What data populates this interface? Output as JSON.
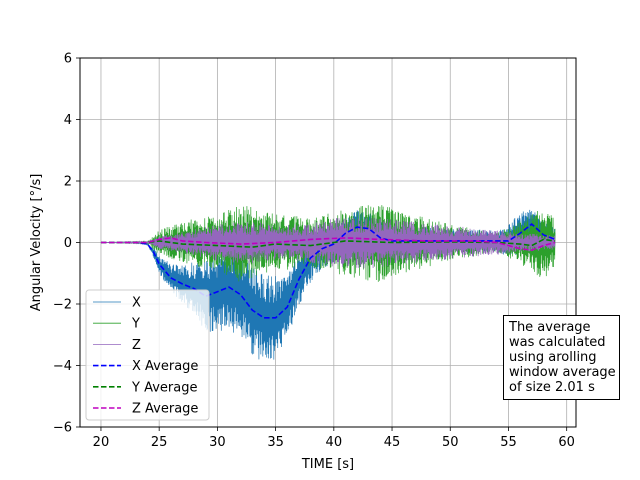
{
  "chart_data": {
    "type": "line",
    "title": "",
    "xlabel": "TIME [s]",
    "ylabel": "Angular Velocity [°/s]",
    "xlim": [
      18.2,
      60.8
    ],
    "ylim": [
      -6,
      6
    ],
    "x_ticks": [
      20,
      25,
      30,
      35,
      40,
      45,
      50,
      55,
      60
    ],
    "y_ticks": [
      -6,
      -4,
      -2,
      0,
      2,
      4,
      6
    ],
    "x_tick_labels": [
      "20",
      "25",
      "30",
      "35",
      "40",
      "45",
      "50",
      "55",
      "60"
    ],
    "y_tick_labels": [
      "−6",
      "−4",
      "−2",
      "0",
      "2",
      "4",
      "6"
    ],
    "grid": true,
    "legend_position": "lower-left",
    "x_range": [
      20,
      59
    ],
    "series": [
      {
        "name": "X",
        "style": "solid",
        "color": "#1f77b4",
        "mean": [
          [
            20,
            0
          ],
          [
            23,
            0
          ],
          [
            24,
            -0.05
          ],
          [
            24.5,
            -0.3
          ],
          [
            25,
            -0.7
          ],
          [
            26,
            -1.15
          ],
          [
            27,
            -1.35
          ],
          [
            28,
            -1.5
          ],
          [
            29,
            -1.75
          ],
          [
            30,
            -1.6
          ],
          [
            31,
            -1.45
          ],
          [
            32,
            -1.7
          ],
          [
            33,
            -2.2
          ],
          [
            34,
            -2.45
          ],
          [
            35,
            -2.45
          ],
          [
            36,
            -2.1
          ],
          [
            37,
            -1.2
          ],
          [
            38,
            -0.5
          ],
          [
            39,
            -0.2
          ],
          [
            40,
            -0.05
          ],
          [
            41,
            0.3
          ],
          [
            42,
            0.5
          ],
          [
            43,
            0.45
          ],
          [
            44,
            0.15
          ],
          [
            45,
            0.05
          ],
          [
            50,
            0.05
          ],
          [
            54,
            0.05
          ],
          [
            55,
            0.05
          ],
          [
            56,
            0.3
          ],
          [
            57,
            0.6
          ],
          [
            58,
            0.25
          ],
          [
            59,
            0.1
          ]
        ],
        "amp": [
          [
            20,
            0
          ],
          [
            24,
            0.02
          ],
          [
            25,
            0.3
          ],
          [
            27,
            0.6
          ],
          [
            29,
            1.2
          ],
          [
            31,
            1.4
          ],
          [
            33,
            1.5
          ],
          [
            35,
            1.4
          ],
          [
            36,
            1.0
          ],
          [
            38,
            0.8
          ],
          [
            40,
            0.6
          ],
          [
            45,
            0.5
          ],
          [
            50,
            0.4
          ],
          [
            54,
            0.35
          ],
          [
            56,
            0.7
          ],
          [
            57,
            0.5
          ],
          [
            59,
            0.4
          ]
        ]
      },
      {
        "name": "Y",
        "style": "solid",
        "color": "#2ca02c",
        "mean": [
          [
            20,
            0
          ],
          [
            59,
            0
          ]
        ],
        "amp": [
          [
            20,
            0
          ],
          [
            24,
            0.03
          ],
          [
            25,
            0.4
          ],
          [
            27,
            0.7
          ],
          [
            30,
            0.9
          ],
          [
            32,
            1.3
          ],
          [
            34,
            1.0
          ],
          [
            36,
            0.9
          ],
          [
            38,
            0.8
          ],
          [
            40,
            1.0
          ],
          [
            42,
            1.2
          ],
          [
            44,
            1.3
          ],
          [
            46,
            1.0
          ],
          [
            48,
            0.8
          ],
          [
            50,
            0.6
          ],
          [
            54,
            0.3
          ],
          [
            56,
            0.7
          ],
          [
            58,
            1.2
          ],
          [
            59,
            0.8
          ]
        ]
      },
      {
        "name": "Z",
        "style": "solid",
        "color": "#9467bd",
        "mean": [
          [
            20,
            0
          ],
          [
            59,
            0
          ]
        ],
        "amp": [
          [
            20,
            0
          ],
          [
            24,
            0.03
          ],
          [
            25,
            0.2
          ],
          [
            27,
            0.35
          ],
          [
            30,
            0.6
          ],
          [
            33,
            0.7
          ],
          [
            35,
            0.55
          ],
          [
            37,
            0.6
          ],
          [
            40,
            0.8
          ],
          [
            43,
            0.85
          ],
          [
            46,
            0.7
          ],
          [
            50,
            0.55
          ],
          [
            54,
            0.4
          ],
          [
            56,
            0.3
          ],
          [
            59,
            0.25
          ]
        ]
      },
      {
        "name": "X Average",
        "style": "dashed",
        "color": "#0000ff",
        "points": [
          [
            20,
            0
          ],
          [
            23,
            0
          ],
          [
            24,
            -0.05
          ],
          [
            24.5,
            -0.3
          ],
          [
            25,
            -0.7
          ],
          [
            26,
            -1.15
          ],
          [
            27,
            -1.35
          ],
          [
            28,
            -1.5
          ],
          [
            29,
            -1.75
          ],
          [
            30,
            -1.6
          ],
          [
            31,
            -1.45
          ],
          [
            32,
            -1.7
          ],
          [
            33,
            -2.2
          ],
          [
            34,
            -2.45
          ],
          [
            35,
            -2.45
          ],
          [
            36,
            -2.1
          ],
          [
            37,
            -1.2
          ],
          [
            38,
            -0.5
          ],
          [
            39,
            -0.2
          ],
          [
            40,
            -0.05
          ],
          [
            41,
            0.3
          ],
          [
            42,
            0.5
          ],
          [
            43,
            0.45
          ],
          [
            44,
            0.15
          ],
          [
            45,
            0.05
          ],
          [
            50,
            0.05
          ],
          [
            54,
            0.05
          ],
          [
            55,
            0.05
          ],
          [
            56,
            0.3
          ],
          [
            57,
            0.6
          ],
          [
            58,
            0.25
          ],
          [
            59,
            0.1
          ]
        ]
      },
      {
        "name": "Y Average",
        "style": "dashed",
        "color": "#008000",
        "points": [
          [
            20,
            0
          ],
          [
            24,
            0
          ],
          [
            25,
            0.05
          ],
          [
            27,
            -0.05
          ],
          [
            30,
            -0.1
          ],
          [
            33,
            -0.15
          ],
          [
            35,
            -0.05
          ],
          [
            38,
            -0.1
          ],
          [
            41,
            0.05
          ],
          [
            45,
            0
          ],
          [
            50,
            0.02
          ],
          [
            54,
            0
          ],
          [
            56,
            -0.05
          ],
          [
            57,
            -0.1
          ],
          [
            58,
            0.1
          ],
          [
            59,
            0.05
          ]
        ]
      },
      {
        "name": "Z Average",
        "style": "dashed",
        "color": "#bf00bf",
        "points": [
          [
            20,
            0
          ],
          [
            24,
            0
          ],
          [
            25,
            0.1
          ],
          [
            26,
            0.15
          ],
          [
            27,
            0.05
          ],
          [
            29,
            0
          ],
          [
            32,
            -0.05
          ],
          [
            35,
            0
          ],
          [
            38,
            0.1
          ],
          [
            41,
            0.15
          ],
          [
            44,
            0.1
          ],
          [
            48,
            0.05
          ],
          [
            52,
            0.05
          ],
          [
            54,
            0
          ],
          [
            56,
            -0.2
          ],
          [
            57,
            -0.25
          ],
          [
            58,
            -0.1
          ],
          [
            59,
            0
          ]
        ]
      }
    ],
    "annotation": {
      "lines": [
        "The average",
        "was calculated",
        "using arolling",
        "window average",
        "of size 2.01 s"
      ]
    }
  }
}
